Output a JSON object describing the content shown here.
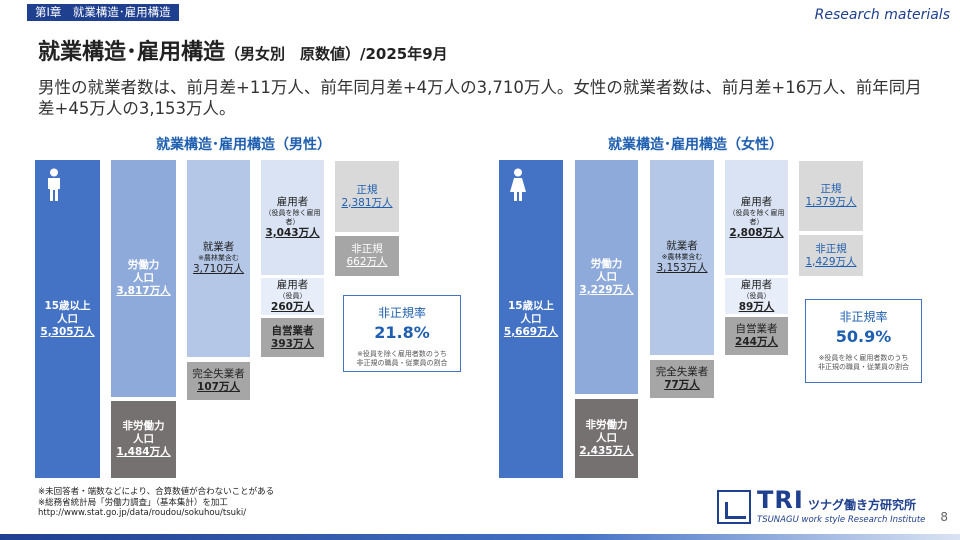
{
  "header": {
    "chapter": "第Ⅰ章　就業構造･雇用構造",
    "research_label": "Research materials",
    "title_main": "就業構造･雇用構造",
    "title_sub": "（男女別　原数値）/2025年9月"
  },
  "lead_text": "男性の就業者数は、前月差+11万人、前年同月差+4万人の3,710万人。女性の就業者数は、前月差+16万人、前年同月差+45万人の3,153万人。",
  "male": {
    "section_title": "就業構造･雇用構造（男性）",
    "pop15": {
      "label1": "15歳以上",
      "label2": "人口",
      "value": "5,305万人"
    },
    "labor_force": {
      "label1": "労働力",
      "label2": "人口",
      "value": "3,817万人"
    },
    "not_in_labor": {
      "label1": "非労働力",
      "label2": "人口",
      "value": "1,484万人"
    },
    "employed": {
      "label": "就業者",
      "note": "※農林業含む",
      "value": "3,710万人"
    },
    "unemployed": {
      "label": "完全失業者",
      "value": "107万人"
    },
    "employees": {
      "label": "雇用者",
      "note": "（役員を除く雇用者）",
      "value": "3,043万人"
    },
    "executives": {
      "label": "雇用者",
      "note": "（役員）",
      "value": "260万人"
    },
    "self_employed": {
      "label": "自営業者",
      "value": "393万人"
    },
    "regular": {
      "label": "正規",
      "value": "2,381万人"
    },
    "non_regular": {
      "label": "非正規",
      "value": "662万人"
    },
    "rate": {
      "label": "非正規率",
      "value": "21.8%",
      "note1": "※役員を除く雇用者数のうち",
      "note2": "非正規の職員・従業員の割合"
    }
  },
  "female": {
    "section_title": "就業構造･雇用構造（女性）",
    "pop15": {
      "label1": "15歳以上",
      "label2": "人口",
      "value": "5,669万人"
    },
    "labor_force": {
      "label1": "労働力",
      "label2": "人口",
      "value": "3,229万人"
    },
    "not_in_labor": {
      "label1": "非労働力",
      "label2": "人口",
      "value": "2,435万人"
    },
    "employed": {
      "label": "就業者",
      "note": "※農林業含む",
      "value": "3,153万人"
    },
    "unemployed": {
      "label": "完全失業者",
      "value": "77万人"
    },
    "employees": {
      "label": "雇用者",
      "note": "（役員を除く雇用者）",
      "value": "2,808万人"
    },
    "executives": {
      "label": "雇用者",
      "note": "（役員）",
      "value": "89万人"
    },
    "self_employed": {
      "label": "自営業者",
      "value": "244万人"
    },
    "regular": {
      "label": "正規",
      "value": "1,379万人"
    },
    "non_regular": {
      "label": "非正規",
      "value": "1,429万人"
    },
    "rate": {
      "label": "非正規率",
      "value": "50.9%",
      "note1": "※役員を除く雇用者数のうち",
      "note2": "非正規の職員・従業員の割合"
    }
  },
  "footnotes": {
    "line1": "※未回答者・端数などにより、合算数値が合わないことがある",
    "line2": "※総務省統計局「労働力調査」（基本集計）を加工",
    "line3": "http://www.stat.go.jp/data/roudou/sokuhou/tsuki/"
  },
  "logo": {
    "mark": "TRI",
    "jp": "ツナグ働き方研究所",
    "en": "TSUNAGU work style Research Institute"
  },
  "page_number": "8"
}
